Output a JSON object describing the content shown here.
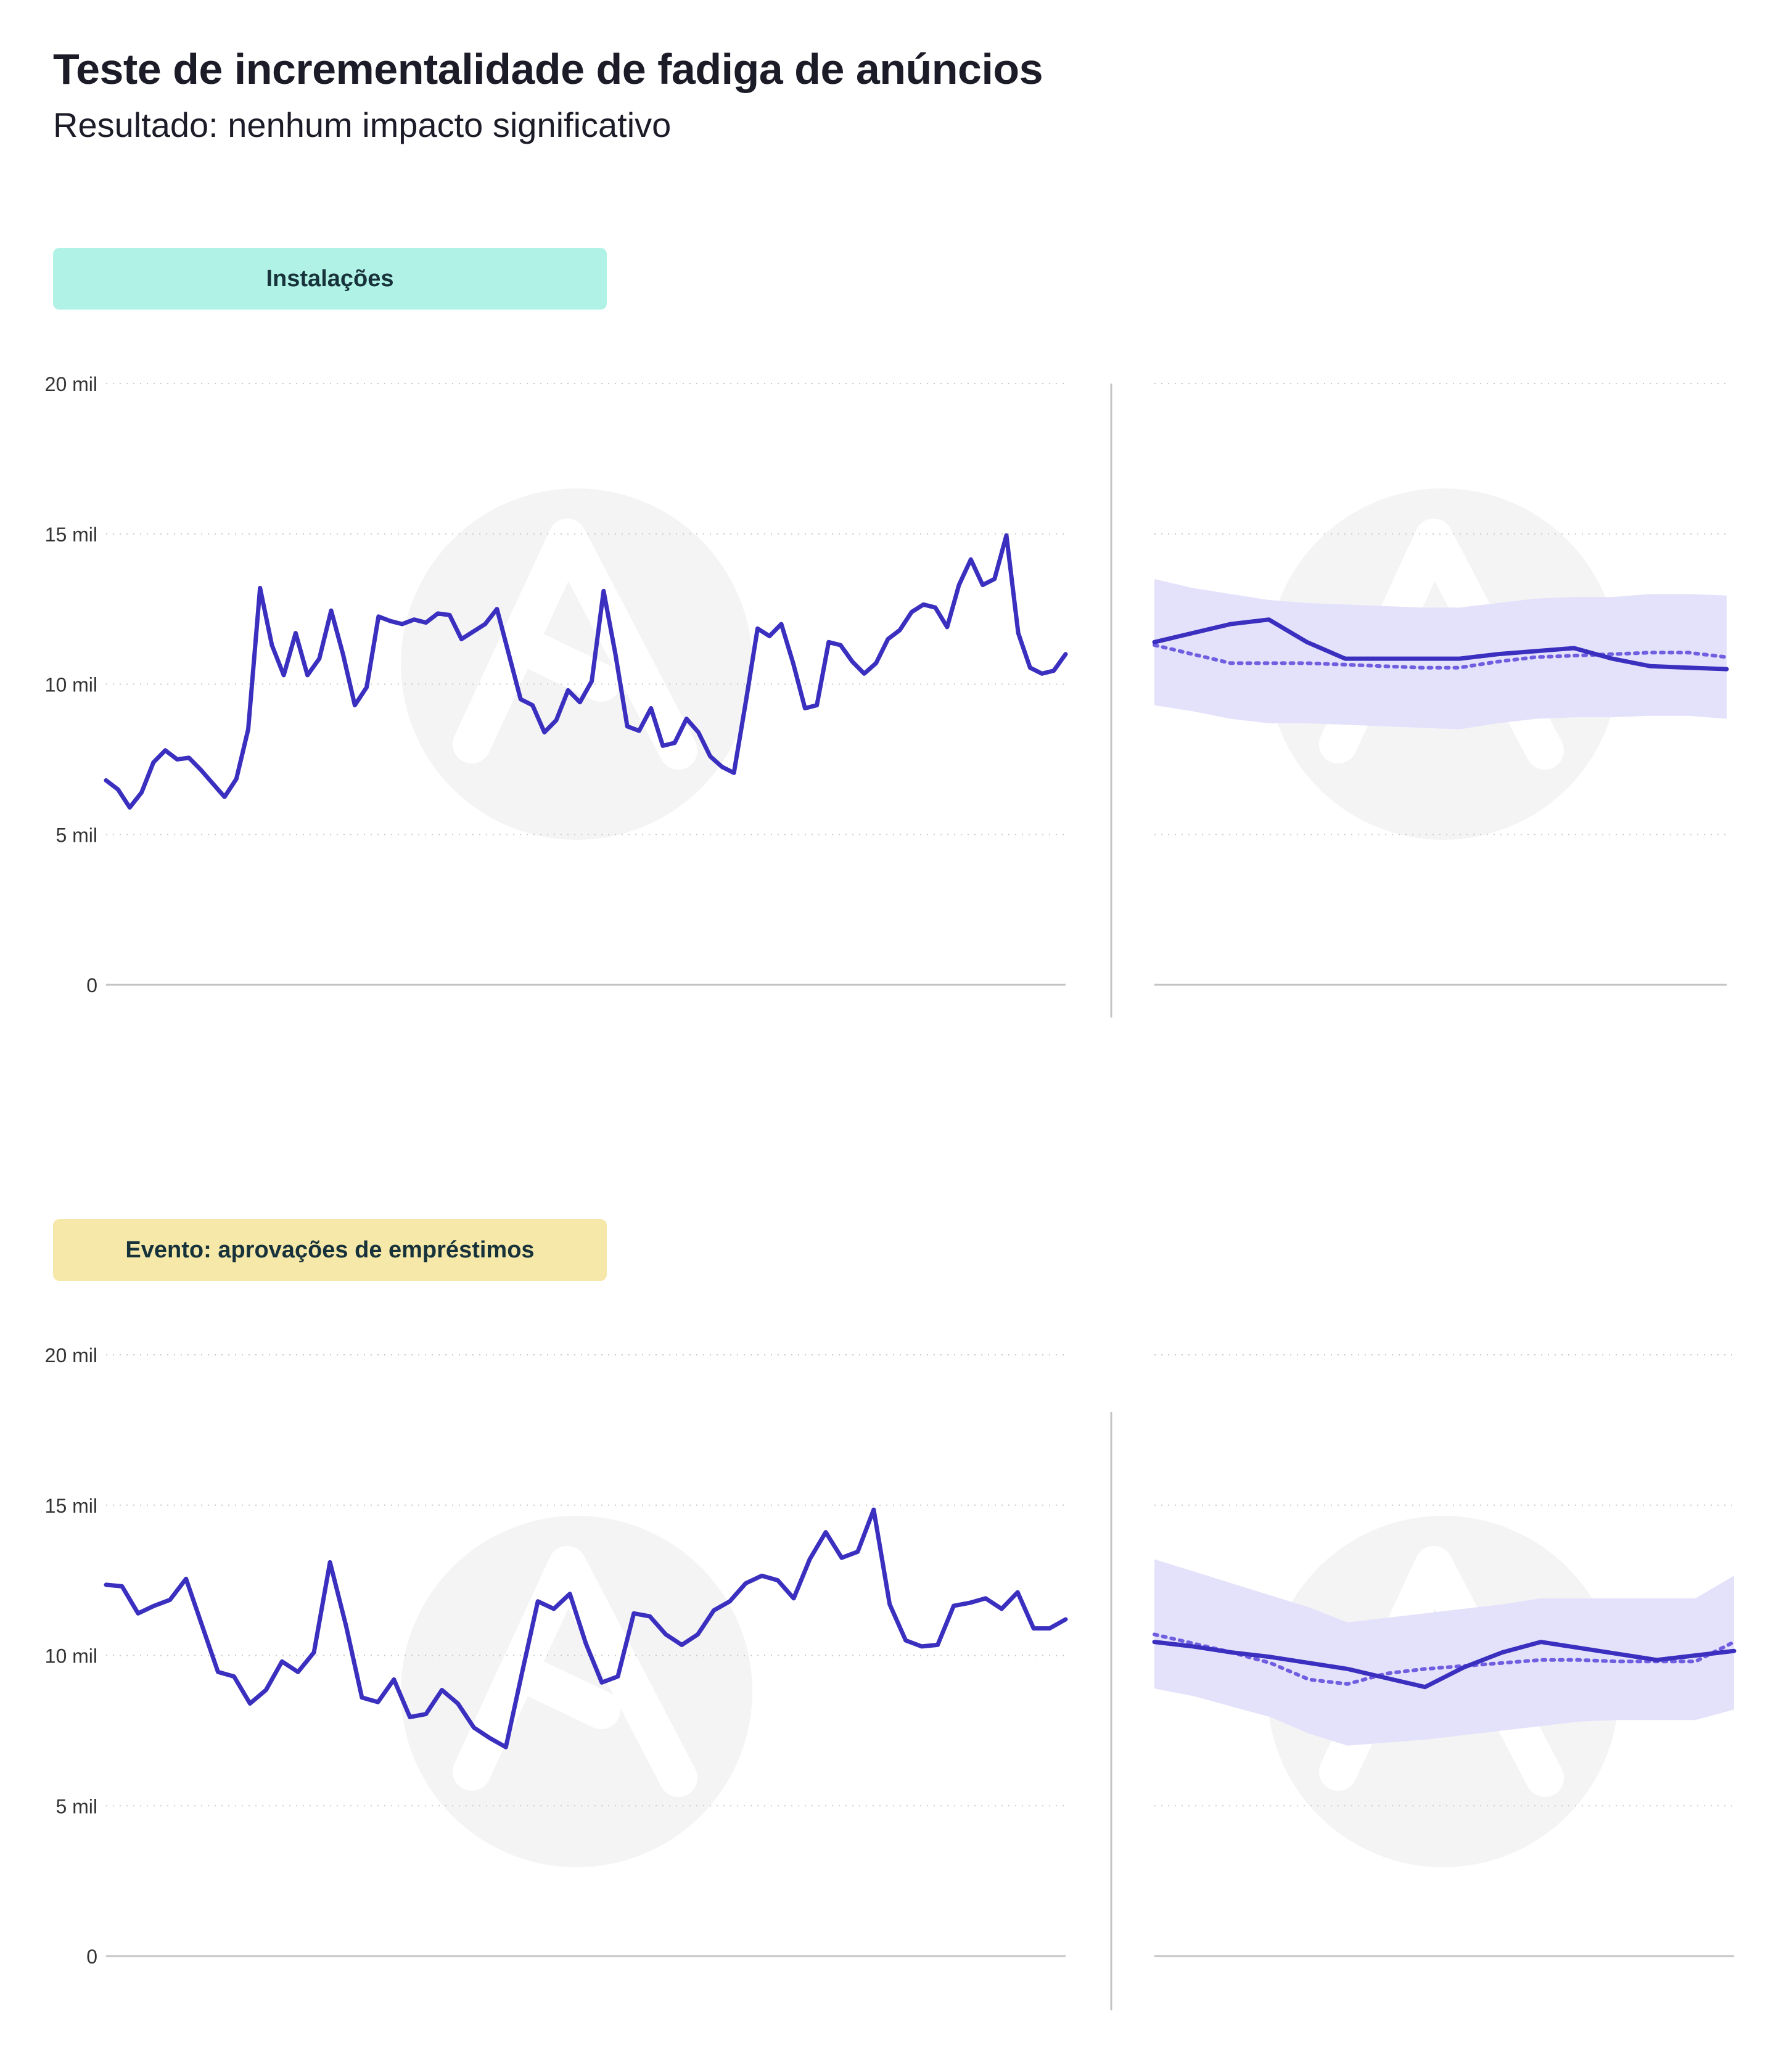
{
  "title": "Teste de incrementalidade de fadiga de anúncios",
  "subtitle": "Resultado: nenhum impacto significativo",
  "colors": {
    "line": "#3a2fbf",
    "dotted": "#6f5fe0",
    "band": "#e4e1fb",
    "grid": "#c9c9c9",
    "axis": "#c4c4c4",
    "tick_text": "#333333",
    "badge_installs": "#b0f3e6",
    "badge_event": "#f6e8a8",
    "watermark": "#f4f4f4"
  },
  "chart_data": [
    {
      "type": "line",
      "label": "Instalações",
      "ylim": [
        0,
        20000
      ],
      "yticks": [
        0,
        5000,
        10000,
        15000,
        20000
      ],
      "ytick_labels": [
        "0",
        "5 mil",
        "10 mil",
        "15 mil",
        "20 mil"
      ],
      "grid": true,
      "history": {
        "name": "Instalações",
        "values": [
          6800,
          6500,
          5900,
          6400,
          7400,
          7800,
          7500,
          7550,
          7150,
          6700,
          6250,
          6850,
          8500,
          13200,
          11300,
          10300,
          11700,
          10300,
          10850,
          12450,
          11000,
          9300,
          9900,
          12250,
          12100,
          12000,
          12150,
          12050,
          12350,
          12300,
          11500,
          11750,
          12000,
          12500,
          11000,
          9500,
          9300,
          8400,
          8800,
          9800,
          9400,
          10100,
          13100,
          11000,
          8600,
          8450,
          9200,
          7950,
          8050,
          8850,
          8400,
          7600,
          7250,
          7050,
          9400,
          11850,
          11600,
          12000,
          10700,
          9200,
          9300,
          11400,
          11300,
          10750,
          10350,
          10700,
          11500,
          11800,
          12400,
          12650,
          12550,
          11900,
          13300,
          14150,
          13300,
          13500,
          14950,
          11700,
          10550,
          10350,
          10450,
          11000
        ]
      },
      "comparison": {
        "x": [
          0,
          1,
          2,
          3,
          4,
          5,
          6,
          7,
          8,
          9,
          10,
          11,
          12,
          13,
          14,
          15
        ],
        "actual": [
          11400,
          11700,
          12000,
          12150,
          11400,
          10850,
          10850,
          10850,
          10850,
          11000,
          11100,
          11200,
          10850,
          10600,
          10550,
          10500
        ],
        "expected": [
          11300,
          11000,
          10700,
          10700,
          10700,
          10650,
          10600,
          10550,
          10550,
          10750,
          10900,
          10950,
          11000,
          11050,
          11050,
          10900
        ],
        "band_upper": [
          13500,
          13200,
          13000,
          12800,
          12700,
          12650,
          12600,
          12550,
          12550,
          12700,
          12850,
          12900,
          12900,
          13000,
          13000,
          12950
        ],
        "band_lower": [
          9300,
          9100,
          8850,
          8700,
          8700,
          8650,
          8600,
          8550,
          8500,
          8700,
          8850,
          8900,
          8900,
          8950,
          8950,
          8850
        ]
      }
    },
    {
      "type": "line",
      "label": "Evento: aprovações de empréstimos",
      "ylim": [
        0,
        20000
      ],
      "yticks": [
        0,
        5000,
        10000,
        15000,
        20000
      ],
      "ytick_labels": [
        "0",
        "5 mil",
        "10 mil",
        "15 mil",
        "20 mil"
      ],
      "grid": true,
      "history": {
        "name": "Evento: aprovações de empréstimos",
        "values": [
          12350,
          12300,
          11400,
          11650,
          11850,
          12550,
          11000,
          9450,
          9300,
          8400,
          8850,
          9800,
          9450,
          10100,
          13100,
          11000,
          8600,
          8450,
          9200,
          7950,
          8050,
          8850,
          8400,
          7600,
          7250,
          6950,
          9400,
          11800,
          11550,
          12050,
          10400,
          9100,
          9300,
          11400,
          11300,
          10700,
          10350,
          10700,
          11500,
          11800,
          12400,
          12650,
          12500,
          11900,
          13200,
          14100,
          13250,
          13450,
          14850,
          11700,
          10500,
          10300,
          10350,
          11650,
          11750,
          11900,
          11550,
          12100,
          10900,
          10900,
          11200
        ]
      },
      "comparison": {
        "x": [
          0,
          1,
          2,
          3,
          4,
          5,
          6,
          7,
          8,
          9,
          10,
          11,
          12,
          13,
          14,
          15
        ],
        "actual": [
          10450,
          10300,
          10100,
          9950,
          9750,
          9550,
          9250,
          8950,
          9600,
          10100,
          10450,
          10250,
          10050,
          9850,
          10000,
          10150
        ],
        "expected": [
          10700,
          10400,
          10100,
          9750,
          9200,
          9050,
          9400,
          9550,
          9650,
          9750,
          9850,
          9850,
          9800,
          9800,
          9800,
          10450
        ],
        "band_upper": [
          13200,
          12800,
          12400,
          12000,
          11600,
          11100,
          11250,
          11400,
          11550,
          11700,
          11900,
          11900,
          11900,
          11900,
          11900,
          12650
        ],
        "band_lower": [
          8900,
          8650,
          8300,
          7950,
          7400,
          7000,
          7100,
          7200,
          7350,
          7500,
          7650,
          7800,
          7850,
          7850,
          7850,
          8200
        ]
      }
    }
  ]
}
